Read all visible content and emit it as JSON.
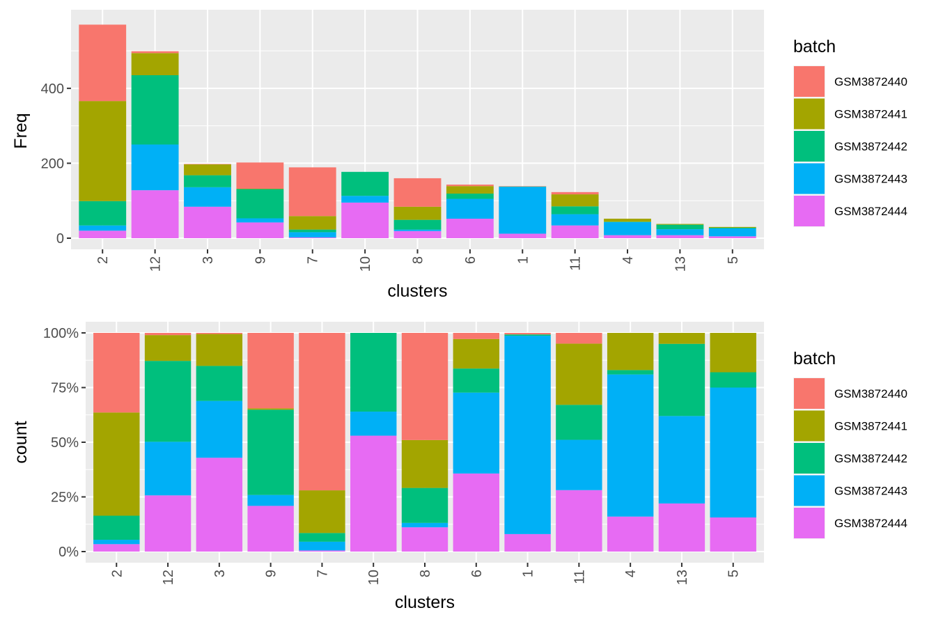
{
  "batch_colors": {
    "GSM3872440": "#F8766D",
    "GSM3872441": "#A3A500",
    "GSM3872442": "#00BF7D",
    "GSM3872443": "#00B0F6",
    "GSM3872444": "#E76BF3"
  },
  "chart_data": [
    {
      "type": "bar",
      "stacked": true,
      "xlabel": "clusters",
      "ylabel": "Freq",
      "ylim": [
        0,
        580
      ],
      "yticks": [
        0,
        200,
        400
      ],
      "ytick_labels": [
        "0",
        "200",
        "400"
      ],
      "grid": true,
      "legend_title": "batch",
      "legend_position": "right",
      "categories": [
        "2",
        "12",
        "3",
        "9",
        "7",
        "10",
        "8",
        "6",
        "1",
        "11",
        "4",
        "13",
        "5"
      ],
      "series": [
        {
          "name": "GSM3872440",
          "values": [
            204,
            5,
            1,
            70,
            130,
            0,
            76,
            4,
            1,
            6,
            0,
            0,
            0
          ]
        },
        {
          "name": "GSM3872441",
          "values": [
            267,
            59,
            29,
            1,
            36,
            0,
            35,
            20,
            0,
            32,
            8,
            2,
            2
          ]
        },
        {
          "name": "GSM3872442",
          "values": [
            65,
            185,
            32,
            78,
            7,
            64,
            26,
            14,
            1,
            21,
            1,
            12,
            2
          ]
        },
        {
          "name": "GSM3872443",
          "values": [
            14,
            122,
            52,
            11,
            14,
            18,
            4,
            53,
            125,
            30,
            35,
            16,
            21
          ]
        },
        {
          "name": "GSM3872444",
          "values": [
            20,
            128,
            84,
            42,
            2,
            95,
            19,
            52,
            12,
            34,
            8,
            8,
            5
          ]
        }
      ]
    },
    {
      "type": "bar",
      "stacked": true,
      "normalized": true,
      "xlabel": "clusters",
      "ylabel": "count",
      "ylim": [
        0,
        1
      ],
      "yticks": [
        0,
        0.25,
        0.5,
        0.75,
        1
      ],
      "ytick_labels": [
        "0%",
        "25%",
        "50%",
        "75%",
        "100%"
      ],
      "grid": true,
      "legend_title": "batch",
      "legend_position": "right",
      "categories": [
        "2",
        "12",
        "3",
        "9",
        "7",
        "10",
        "8",
        "6",
        "1",
        "11",
        "4",
        "13",
        "5"
      ],
      "series": [
        {
          "name": "GSM3872440",
          "values": [
            0.364,
            0.01,
            0.005,
            0.345,
            0.72,
            0,
            0.49,
            0.028,
            0.007,
            0.049,
            0,
            0,
            0
          ]
        },
        {
          "name": "GSM3872441",
          "values": [
            0.472,
            0.118,
            0.146,
            0.006,
            0.195,
            0,
            0.219,
            0.135,
            0,
            0.28,
            0.17,
            0.05,
            0.18
          ]
        },
        {
          "name": "GSM3872442",
          "values": [
            0.11,
            0.37,
            0.16,
            0.39,
            0.04,
            0.36,
            0.16,
            0.11,
            0.006,
            0.16,
            0.02,
            0.33,
            0.07
          ]
        },
        {
          "name": "GSM3872443",
          "values": [
            0.02,
            0.245,
            0.26,
            0.05,
            0.04,
            0.11,
            0.02,
            0.37,
            0.907,
            0.23,
            0.65,
            0.4,
            0.594
          ]
        },
        {
          "name": "GSM3872444",
          "values": [
            0.034,
            0.257,
            0.429,
            0.209,
            0.005,
            0.53,
            0.111,
            0.357,
            0.08,
            0.281,
            0.16,
            0.22,
            0.156
          ]
        }
      ]
    }
  ]
}
